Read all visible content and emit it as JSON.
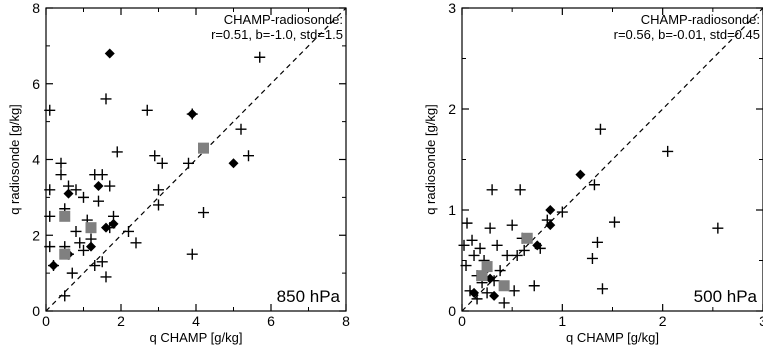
{
  "chart_data": [
    {
      "type": "scatter",
      "panel_label": "850 hPa",
      "xlabel": "q CHAMP [g/kg]",
      "ylabel": "q radiosonde [g/kg]",
      "xlim": [
        0,
        8
      ],
      "ylim": [
        0,
        8
      ],
      "xticks": [
        0,
        2,
        4,
        6,
        8
      ],
      "yticks": [
        0,
        2,
        4,
        6,
        8
      ],
      "annotation": [
        "CHAMP-radiosonde:",
        "r=0.51, b=-1.0, std=1.5"
      ],
      "reference_line": "1:1 dashed",
      "series": [
        {
          "marker": "plus",
          "color": "#000000",
          "points": [
            [
              0.1,
              5.3
            ],
            [
              0.1,
              3.2
            ],
            [
              0.1,
              2.5
            ],
            [
              0.1,
              1.7
            ],
            [
              0.2,
              1.2
            ],
            [
              0.4,
              3.9
            ],
            [
              0.4,
              3.6
            ],
            [
              0.5,
              2.7
            ],
            [
              0.5,
              1.7
            ],
            [
              0.5,
              0.4
            ],
            [
              0.6,
              3.3
            ],
            [
              0.6,
              1.5
            ],
            [
              0.7,
              1.0
            ],
            [
              0.8,
              3.2
            ],
            [
              0.8,
              2.1
            ],
            [
              0.9,
              1.8
            ],
            [
              1.0,
              3.0
            ],
            [
              1.0,
              1.6
            ],
            [
              1.1,
              2.4
            ],
            [
              1.2,
              1.9
            ],
            [
              1.3,
              3.6
            ],
            [
              1.3,
              1.2
            ],
            [
              1.4,
              2.9
            ],
            [
              1.5,
              3.6
            ],
            [
              1.5,
              1.3
            ],
            [
              1.6,
              5.6
            ],
            [
              1.6,
              0.9
            ],
            [
              1.7,
              3.3
            ],
            [
              1.7,
              2.2
            ],
            [
              1.8,
              2.5
            ],
            [
              1.9,
              4.2
            ],
            [
              2.2,
              2.1
            ],
            [
              2.4,
              1.8
            ],
            [
              2.7,
              5.3
            ],
            [
              2.9,
              4.1
            ],
            [
              3.0,
              3.2
            ],
            [
              3.0,
              2.8
            ],
            [
              3.1,
              3.9
            ],
            [
              3.8,
              3.9
            ],
            [
              3.9,
              5.2
            ],
            [
              3.9,
              1.5
            ],
            [
              4.2,
              2.6
            ],
            [
              5.2,
              4.8
            ],
            [
              5.4,
              4.1
            ],
            [
              5.7,
              6.7
            ]
          ]
        },
        {
          "marker": "diamond",
          "color": "#000000",
          "points": [
            [
              0.2,
              1.2
            ],
            [
              0.6,
              3.1
            ],
            [
              0.6,
              1.5
            ],
            [
              1.2,
              1.7
            ],
            [
              1.4,
              3.3
            ],
            [
              1.6,
              2.2
            ],
            [
              1.7,
              6.8
            ],
            [
              1.8,
              2.3
            ],
            [
              3.9,
              5.2
            ],
            [
              5.0,
              3.9
            ]
          ]
        },
        {
          "marker": "square",
          "color": "#808080",
          "points": [
            [
              0.5,
              2.5
            ],
            [
              0.5,
              1.5
            ],
            [
              1.2,
              2.2
            ],
            [
              4.2,
              4.3
            ]
          ]
        }
      ]
    },
    {
      "type": "scatter",
      "panel_label": "500 hPa",
      "xlabel": "q CHAMP [g/kg]",
      "ylabel": "q radiosonde [g/kg]",
      "xlim": [
        0,
        3
      ],
      "ylim": [
        0,
        3
      ],
      "xticks": [
        0,
        1,
        2,
        3
      ],
      "yticks": [
        0,
        1,
        2,
        3
      ],
      "annotation": [
        "CHAMP-radiosonde:",
        "r=0.56, b=-0.01, std=0.45"
      ],
      "reference_line": "1:1 dashed",
      "series": [
        {
          "marker": "plus",
          "color": "#000000",
          "points": [
            [
              0.02,
              0.65
            ],
            [
              0.04,
              0.45
            ],
            [
              0.05,
              0.87
            ],
            [
              0.08,
              0.2
            ],
            [
              0.1,
              0.7
            ],
            [
              0.12,
              0.55
            ],
            [
              0.15,
              0.35
            ],
            [
              0.15,
              0.12
            ],
            [
              0.18,
              0.62
            ],
            [
              0.2,
              0.28
            ],
            [
              0.22,
              0.5
            ],
            [
              0.25,
              0.18
            ],
            [
              0.28,
              0.82
            ],
            [
              0.3,
              1.2
            ],
            [
              0.32,
              0.3
            ],
            [
              0.35,
              0.65
            ],
            [
              0.38,
              0.4
            ],
            [
              0.42,
              0.08
            ],
            [
              0.45,
              0.55
            ],
            [
              0.5,
              0.85
            ],
            [
              0.52,
              0.2
            ],
            [
              0.55,
              0.55
            ],
            [
              0.58,
              1.2
            ],
            [
              0.6,
              0.72
            ],
            [
              0.62,
              0.6
            ],
            [
              0.72,
              0.25
            ],
            [
              0.78,
              0.62
            ],
            [
              0.85,
              0.9
            ],
            [
              1.0,
              0.98
            ],
            [
              1.3,
              0.52
            ],
            [
              1.32,
              1.25
            ],
            [
              1.35,
              0.68
            ],
            [
              1.38,
              1.8
            ],
            [
              1.4,
              0.22
            ],
            [
              1.52,
              0.88
            ],
            [
              2.05,
              1.58
            ],
            [
              2.55,
              0.82
            ]
          ]
        },
        {
          "marker": "diamond",
          "color": "#000000",
          "points": [
            [
              0.12,
              0.18
            ],
            [
              0.2,
              0.35
            ],
            [
              0.25,
              0.42
            ],
            [
              0.28,
              0.32
            ],
            [
              0.32,
              0.15
            ],
            [
              0.75,
              0.65
            ],
            [
              0.88,
              0.85
            ],
            [
              0.88,
              1.0
            ],
            [
              1.18,
              1.35
            ]
          ]
        },
        {
          "marker": "square",
          "color": "#808080",
          "points": [
            [
              0.2,
              0.35
            ],
            [
              0.25,
              0.44
            ],
            [
              0.42,
              0.25
            ],
            [
              0.65,
              0.72
            ]
          ]
        }
      ]
    }
  ]
}
